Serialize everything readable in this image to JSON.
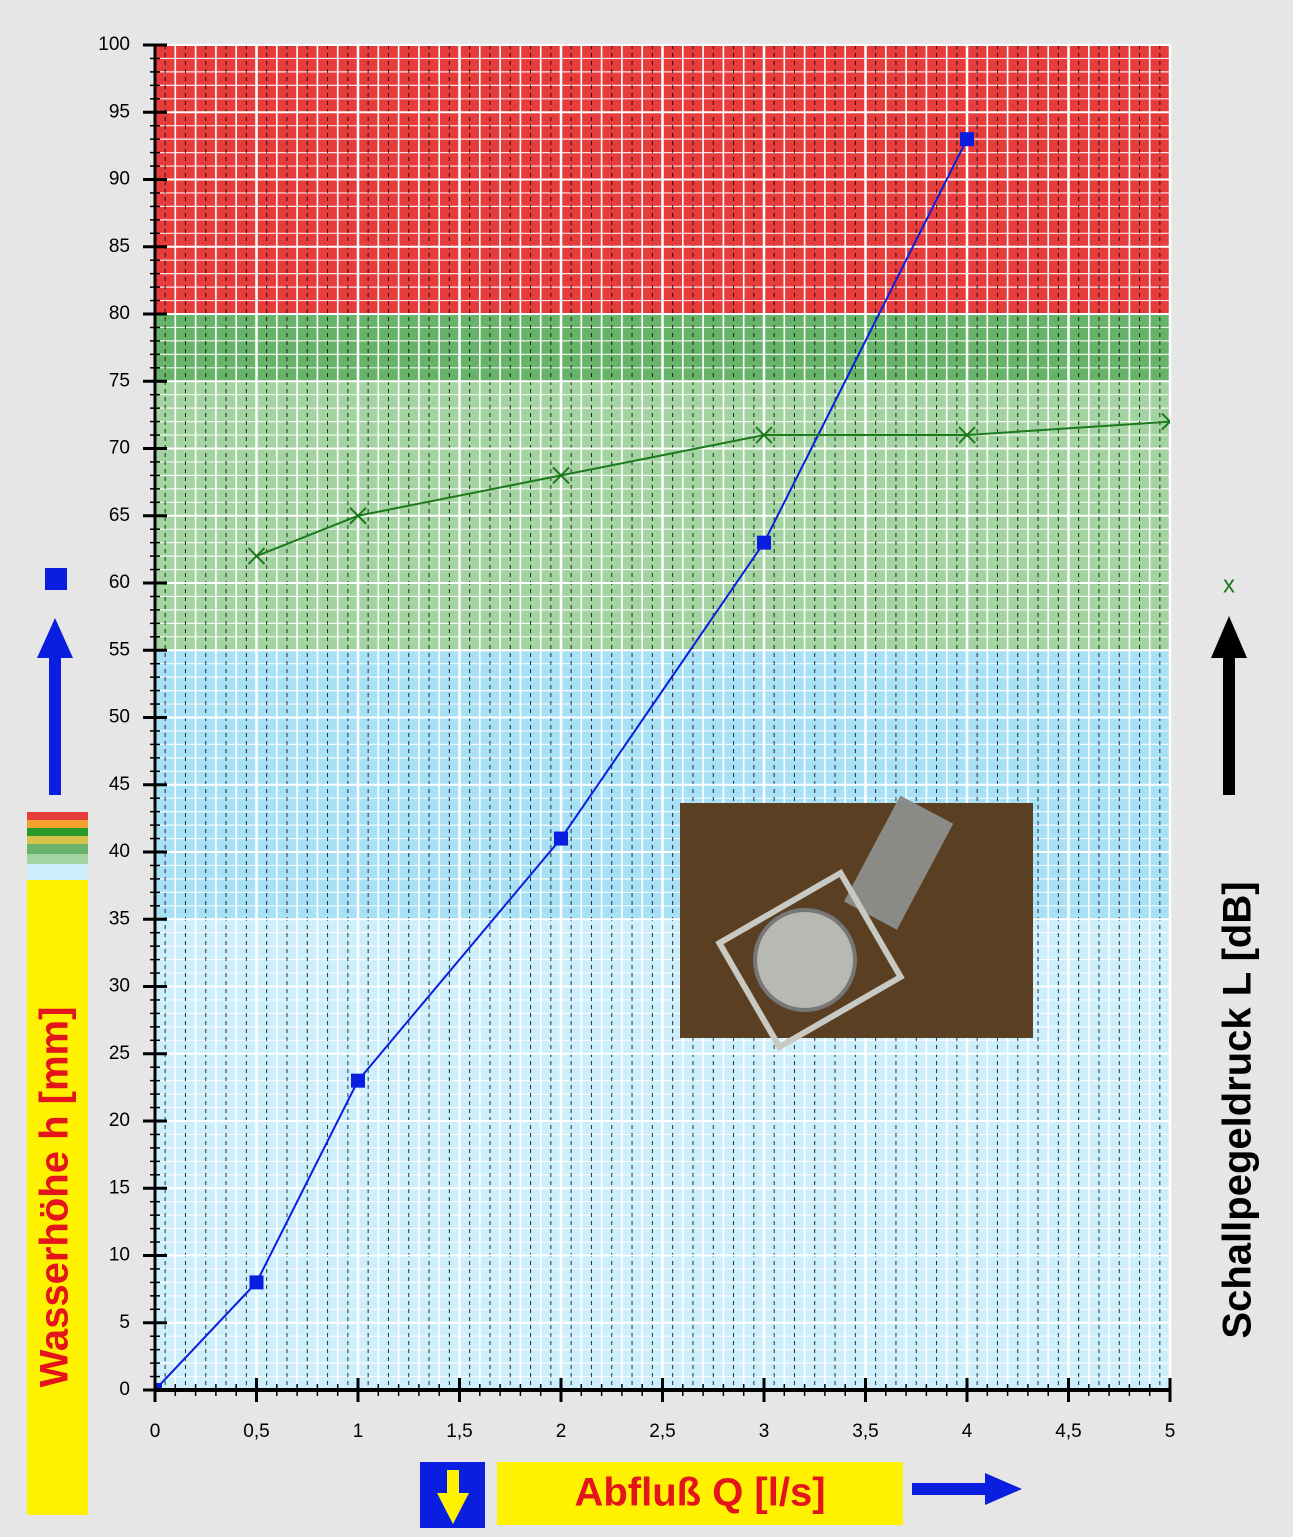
{
  "chart_data": {
    "type": "line",
    "xlabel": "Abfluß Q [l/s]",
    "ylabel": "Wasserhöhe h [mm]",
    "y2label": "Schallpegeldruck L [dB]",
    "xlim": [
      0,
      5
    ],
    "ylim": [
      0,
      100
    ],
    "xticks": [
      0,
      {
        "value": 0.5,
        "label": "0,5"
      },
      1,
      {
        "value": 1.5,
        "label": "1,5"
      },
      2,
      {
        "value": 2.5,
        "label": "2,5"
      },
      3,
      {
        "value": 3.5,
        "label": "3,5"
      },
      4,
      {
        "value": 4.5,
        "label": "4,5"
      },
      5
    ],
    "yticks": [
      0,
      5,
      10,
      15,
      20,
      25,
      30,
      35,
      40,
      45,
      50,
      55,
      60,
      65,
      70,
      75,
      80,
      85,
      90,
      95,
      100
    ],
    "grid": true,
    "bands": [
      {
        "from": 0,
        "to": 35,
        "color": "#cdeefb"
      },
      {
        "from": 35,
        "to": 55,
        "color": "#a8e0f6"
      },
      {
        "from": 55,
        "to": 75,
        "color": "#a3d3a0"
      },
      {
        "from": 75,
        "to": 80,
        "color": "#67b36a"
      },
      {
        "from": 80,
        "to": 100,
        "color": "#e63c3c"
      }
    ],
    "series": [
      {
        "name": "Wasserhöhe h",
        "color": "#0a1ee0",
        "marker": "square",
        "x": [
          0,
          0.5,
          1,
          2,
          3,
          4
        ],
        "values": [
          0,
          8,
          23,
          41,
          63,
          93
        ]
      },
      {
        "name": "Schallpegeldruck L",
        "color": "#1e7a1e",
        "marker": "x",
        "marker_label": "x",
        "x": [
          0.5,
          1,
          2,
          3,
          4,
          5
        ],
        "values": [
          62,
          65,
          68,
          71,
          71,
          72
        ]
      }
    ]
  }
}
